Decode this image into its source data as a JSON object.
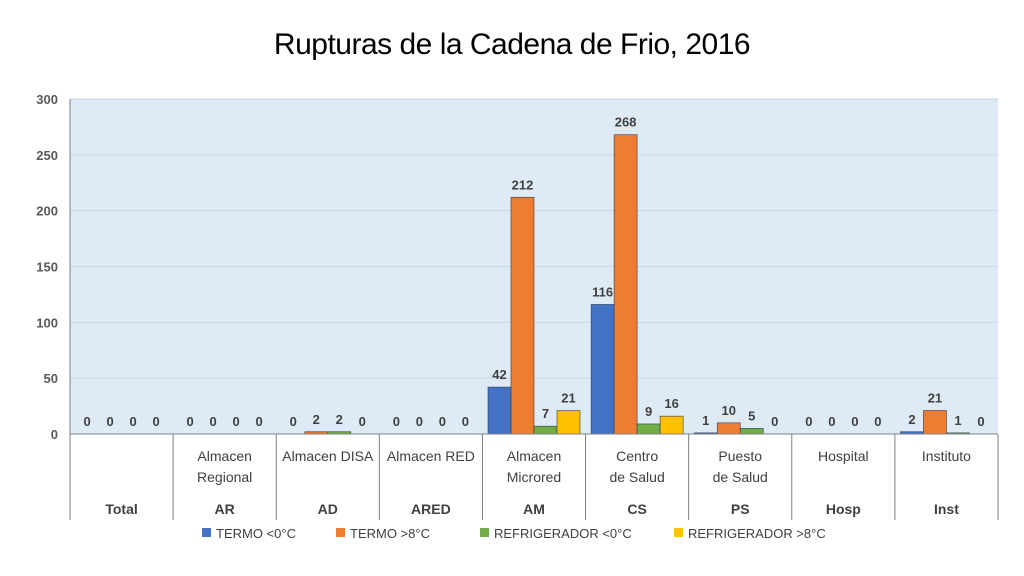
{
  "chart_data": {
    "type": "bar",
    "title": "Rupturas de la Cadena de Frio, 2016",
    "xlabel": "",
    "ylabel": "",
    "ylim": [
      0,
      300
    ],
    "yticks": [
      0,
      50,
      100,
      150,
      200,
      250,
      300
    ],
    "grid": true,
    "legend_position": "bottom",
    "categories": [
      {
        "name": "",
        "group": "Total"
      },
      {
        "name": "Almacen Regional",
        "group": "AR"
      },
      {
        "name": "Almacen DISA",
        "group": "AD"
      },
      {
        "name": "Almacen RED",
        "group": "ARED"
      },
      {
        "name": "Almacen Microred",
        "group": "AM"
      },
      {
        "name": "Centro de Salud",
        "group": "CS"
      },
      {
        "name": "Puesto de Salud",
        "group": "PS"
      },
      {
        "name": "Hospital",
        "group": "Hosp"
      },
      {
        "name": "Instituto",
        "group": "Inst"
      }
    ],
    "series": [
      {
        "name": "TERMO <0°C",
        "color": "#4472C4",
        "values": [
          0,
          0,
          0,
          0,
          42,
          116,
          1,
          0,
          2
        ]
      },
      {
        "name": "TERMO >8°C",
        "color": "#ED7D31",
        "values": [
          0,
          0,
          2,
          0,
          212,
          268,
          10,
          0,
          21
        ]
      },
      {
        "name": "REFRIGERADOR <0°C",
        "color": "#70AD47",
        "values": [
          0,
          0,
          2,
          0,
          7,
          9,
          5,
          0,
          1
        ]
      },
      {
        "name": "REFRIGERADOR >8°C",
        "color": "#FFC000",
        "values": [
          0,
          0,
          0,
          0,
          21,
          16,
          0,
          0,
          0
        ]
      }
    ]
  }
}
